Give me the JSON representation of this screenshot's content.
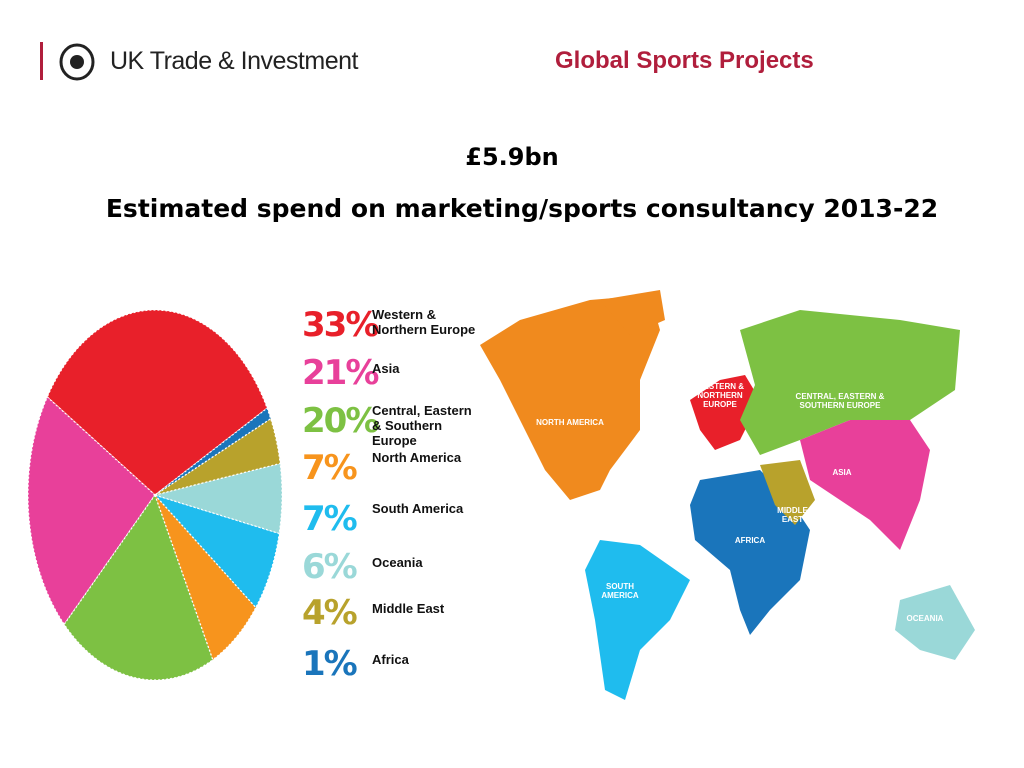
{
  "header": {
    "logo_text": "UK Trade & Investment",
    "section_title": "Global Sports Projects"
  },
  "chart_data": {
    "type": "pie",
    "title": "£5.9bn",
    "subtitle": "Estimated spend on marketing/sports consultancy 2013-22",
    "categories": [
      "Western & Northern Europe",
      "Asia",
      "Central, Eastern & Southern Europe",
      "North America",
      "South America",
      "Oceania",
      "Middle East",
      "Africa"
    ],
    "values": [
      33,
      21,
      20,
      7,
      7,
      6,
      4,
      1
    ],
    "value_labels": [
      "33%",
      "21%",
      "20%",
      "7%",
      "7%",
      "6%",
      "4%",
      "1%"
    ],
    "colors": [
      "#e8202a",
      "#e8409a",
      "#7dc143",
      "#f7941d",
      "#1fbcee",
      "#9ad8d8",
      "#b8a22c",
      "#1a75bb"
    ]
  },
  "map": {
    "labels": [
      "NORTH AMERICA",
      "WESTERN & NORTHERN EUROPE",
      "CENTRAL, EASTERN & SOUTHERN EUROPE",
      "ASIA",
      "MIDDLE EAST",
      "AFRICA",
      "SOUTH AMERICA",
      "OCEANIA"
    ]
  }
}
